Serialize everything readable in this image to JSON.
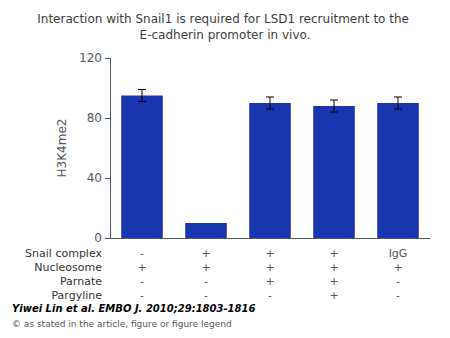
{
  "chart_data": {
    "type": "bar",
    "title": "Interaction with Snail1 is required for LSD1 recruitment to the E-cadherin promoter in vivo.",
    "categories": [
      null,
      null,
      null,
      null,
      null
    ],
    "values": [
      95,
      10,
      90,
      88,
      90
    ],
    "errors": [
      4,
      null,
      4,
      4,
      4
    ],
    "color": "#1a35b0",
    "ylabel": "H3K4me2",
    "ylim": [
      0,
      120
    ],
    "yticks": [
      0,
      40,
      80,
      120
    ],
    "grid": false,
    "conditions": [
      {
        "name": "Snail complex",
        "values": [
          "-",
          "+",
          "+",
          "+",
          "IgG"
        ]
      },
      {
        "name": "Nucleosome",
        "values": [
          "+",
          "+",
          "+",
          "+",
          "+"
        ]
      },
      {
        "name": "Parnate",
        "values": [
          "-",
          "-",
          "+",
          "+",
          "-"
        ]
      },
      {
        "name": "Pargyline",
        "values": [
          "-",
          "-",
          "-",
          "+",
          "-"
        ]
      }
    ],
    "annotations": [
      "Yiwei Lin et al. EMBO J. 2010;29:1803-1816",
      "© as stated in the article, figure or figure legend"
    ]
  }
}
